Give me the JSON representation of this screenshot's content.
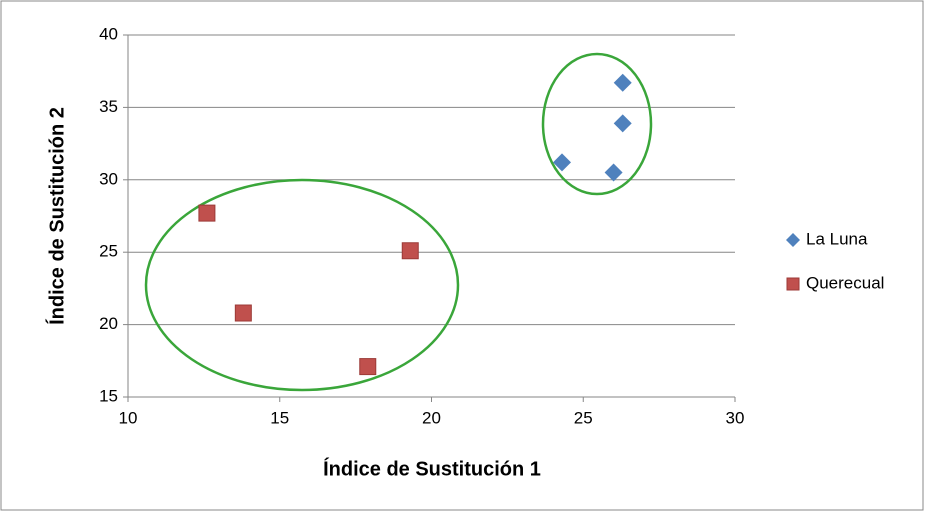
{
  "chart_data": {
    "type": "scatter",
    "xlabel": "Índice de Sustitución 1",
    "ylabel": "Índice de Sustitución 2",
    "xlim": [
      10,
      30
    ],
    "xticks": [
      10,
      15,
      20,
      25,
      30
    ],
    "ylim": [
      15,
      40
    ],
    "yticks": [
      15,
      20,
      25,
      30,
      35,
      40
    ],
    "grid": true,
    "legend": "right",
    "series": [
      {
        "name": "La Luna",
        "color": "#4f81bd",
        "marker": "diamond",
        "x": [
          24.3,
          26.0,
          26.3,
          26.3
        ],
        "values": [
          31.2,
          30.5,
          36.7,
          33.9
        ]
      },
      {
        "name": "Querecual",
        "color": "#c0504d",
        "marker": "square",
        "x": [
          12.6,
          13.8,
          17.9,
          19.3
        ],
        "values": [
          27.7,
          20.8,
          17.1,
          25.1
        ]
      }
    ]
  }
}
